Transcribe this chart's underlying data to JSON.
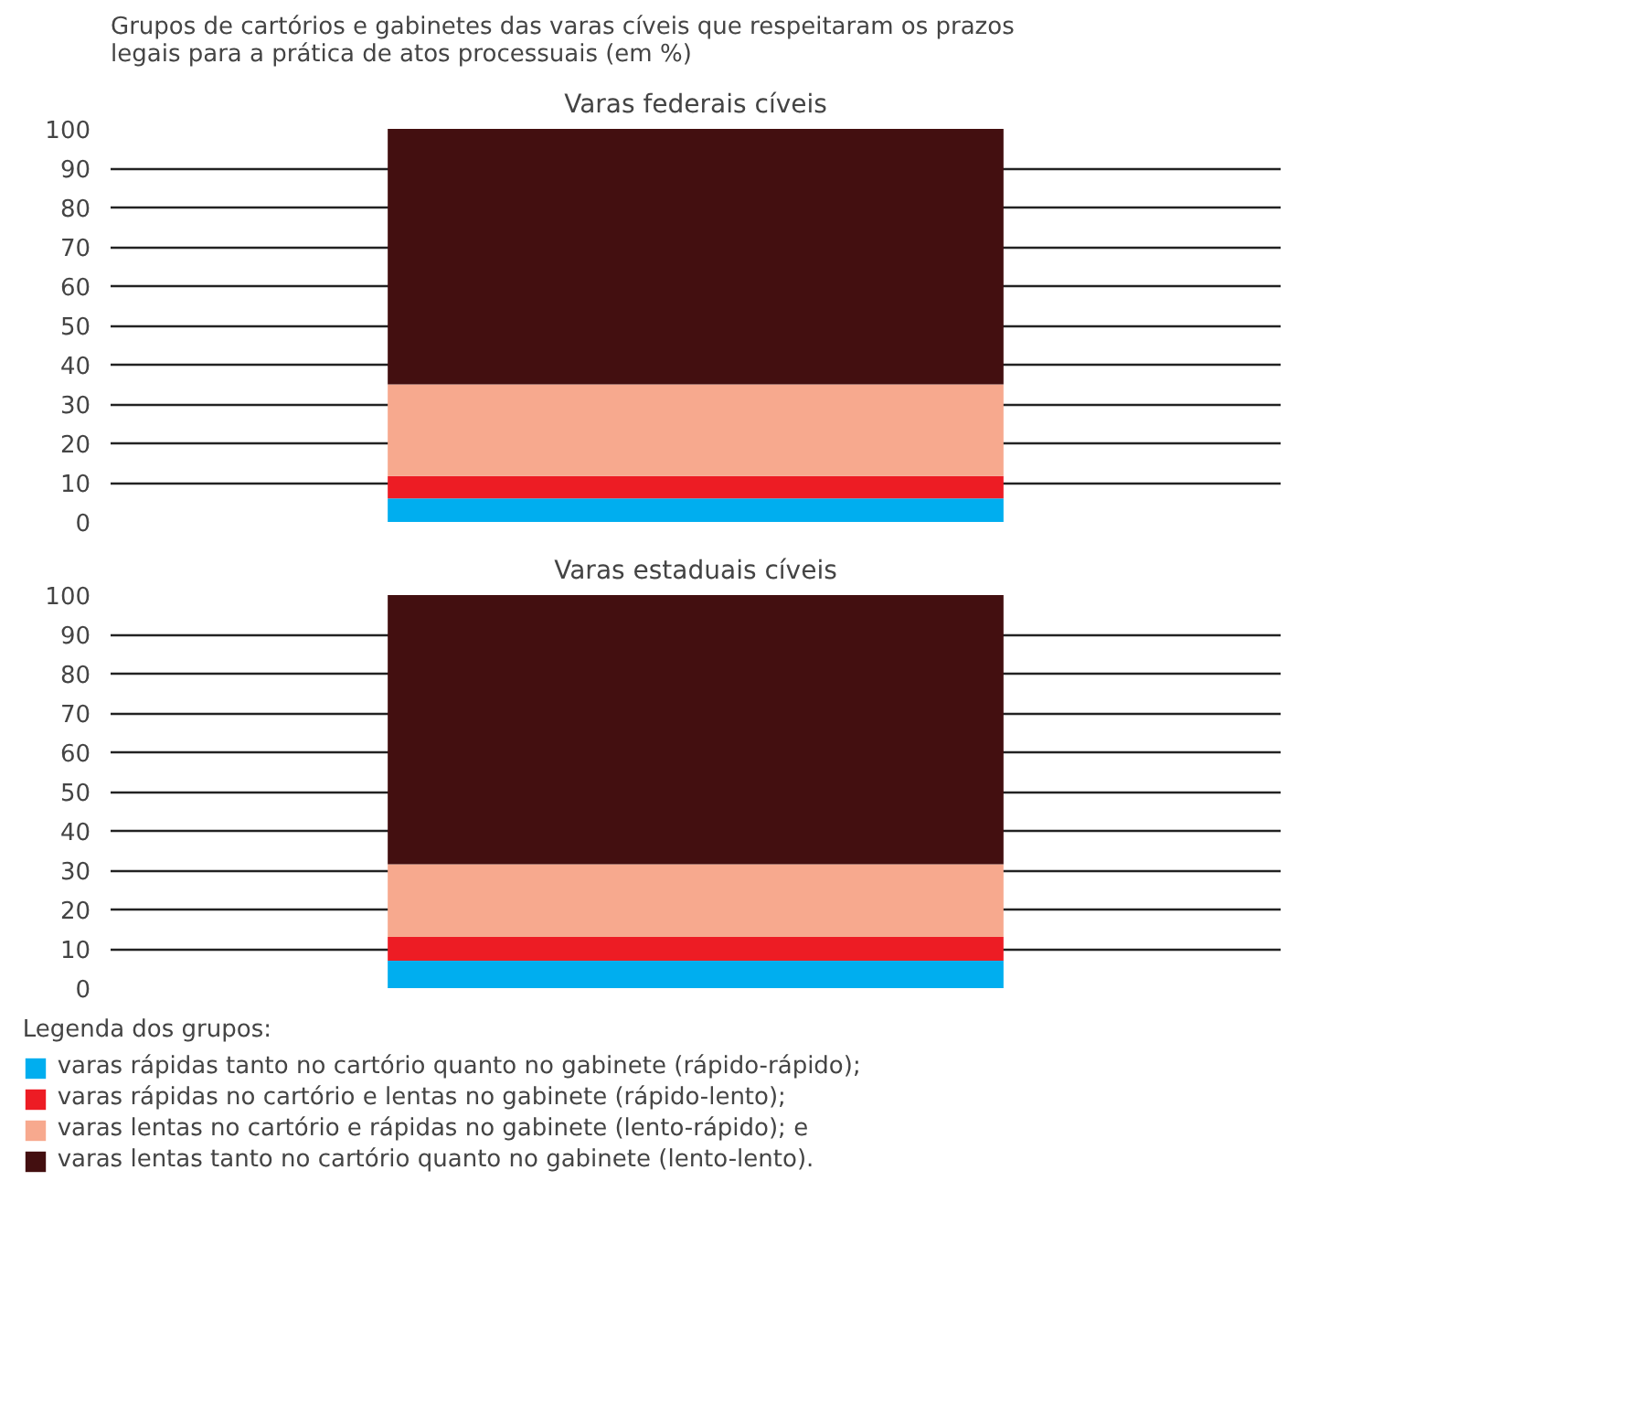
{
  "chart_data": [
    {
      "type": "bar",
      "stacked": true,
      "title": "Varas federais cíveis",
      "annotations": [
        "Grupos de cartórios e gabinetes das varas cíveis que respeitaram os prazos legais para a prática de atos processuais (em %)"
      ],
      "categories": [
        null
      ],
      "series": [
        {
          "color": "#00aeef",
          "values": [
            6
          ]
        },
        {
          "color": "#ed1c24",
          "values": [
            5.7
          ]
        },
        {
          "color": "#f7a98e",
          "values": [
            23.3
          ]
        },
        {
          "color": "#430f10",
          "values": [
            65
          ]
        }
      ],
      "ylim": [
        0,
        100
      ],
      "yticks": [
        0,
        10,
        20,
        30,
        40,
        50,
        60,
        70,
        80,
        90,
        100
      ],
      "grid": "y",
      "tick_labels": "y"
    },
    {
      "type": "bar",
      "stacked": true,
      "title": "Varas estaduais cíveis",
      "legend_title": "Legenda dos grupos:",
      "categories": [
        null
      ],
      "series": [
        {
          "name": "varas rápidas tanto no cartório quanto no gabinete (rápido-rápido);",
          "color": "#00aeef",
          "values": [
            7
          ]
        },
        {
          "name": "varas rápidas no cartório e lentas no gabinete (rápido-lento);",
          "color": "#ed1c24",
          "values": [
            6
          ]
        },
        {
          "name": "varas lentas no cartório e rápidas no gabinete (lento-rápido); e",
          "color": "#f7a98e",
          "values": [
            18.5
          ]
        },
        {
          "name": "varas lentas tanto no cartório quanto no gabinete (lento-lento).",
          "color": "#430f10",
          "values": [
            68.5
          ]
        }
      ],
      "ylim": [
        0,
        100
      ],
      "yticks": [
        0,
        10,
        20,
        30,
        40,
        50,
        60,
        70,
        80,
        90,
        100
      ],
      "grid": "y",
      "legend": "bottom",
      "tick_labels": "y"
    }
  ]
}
